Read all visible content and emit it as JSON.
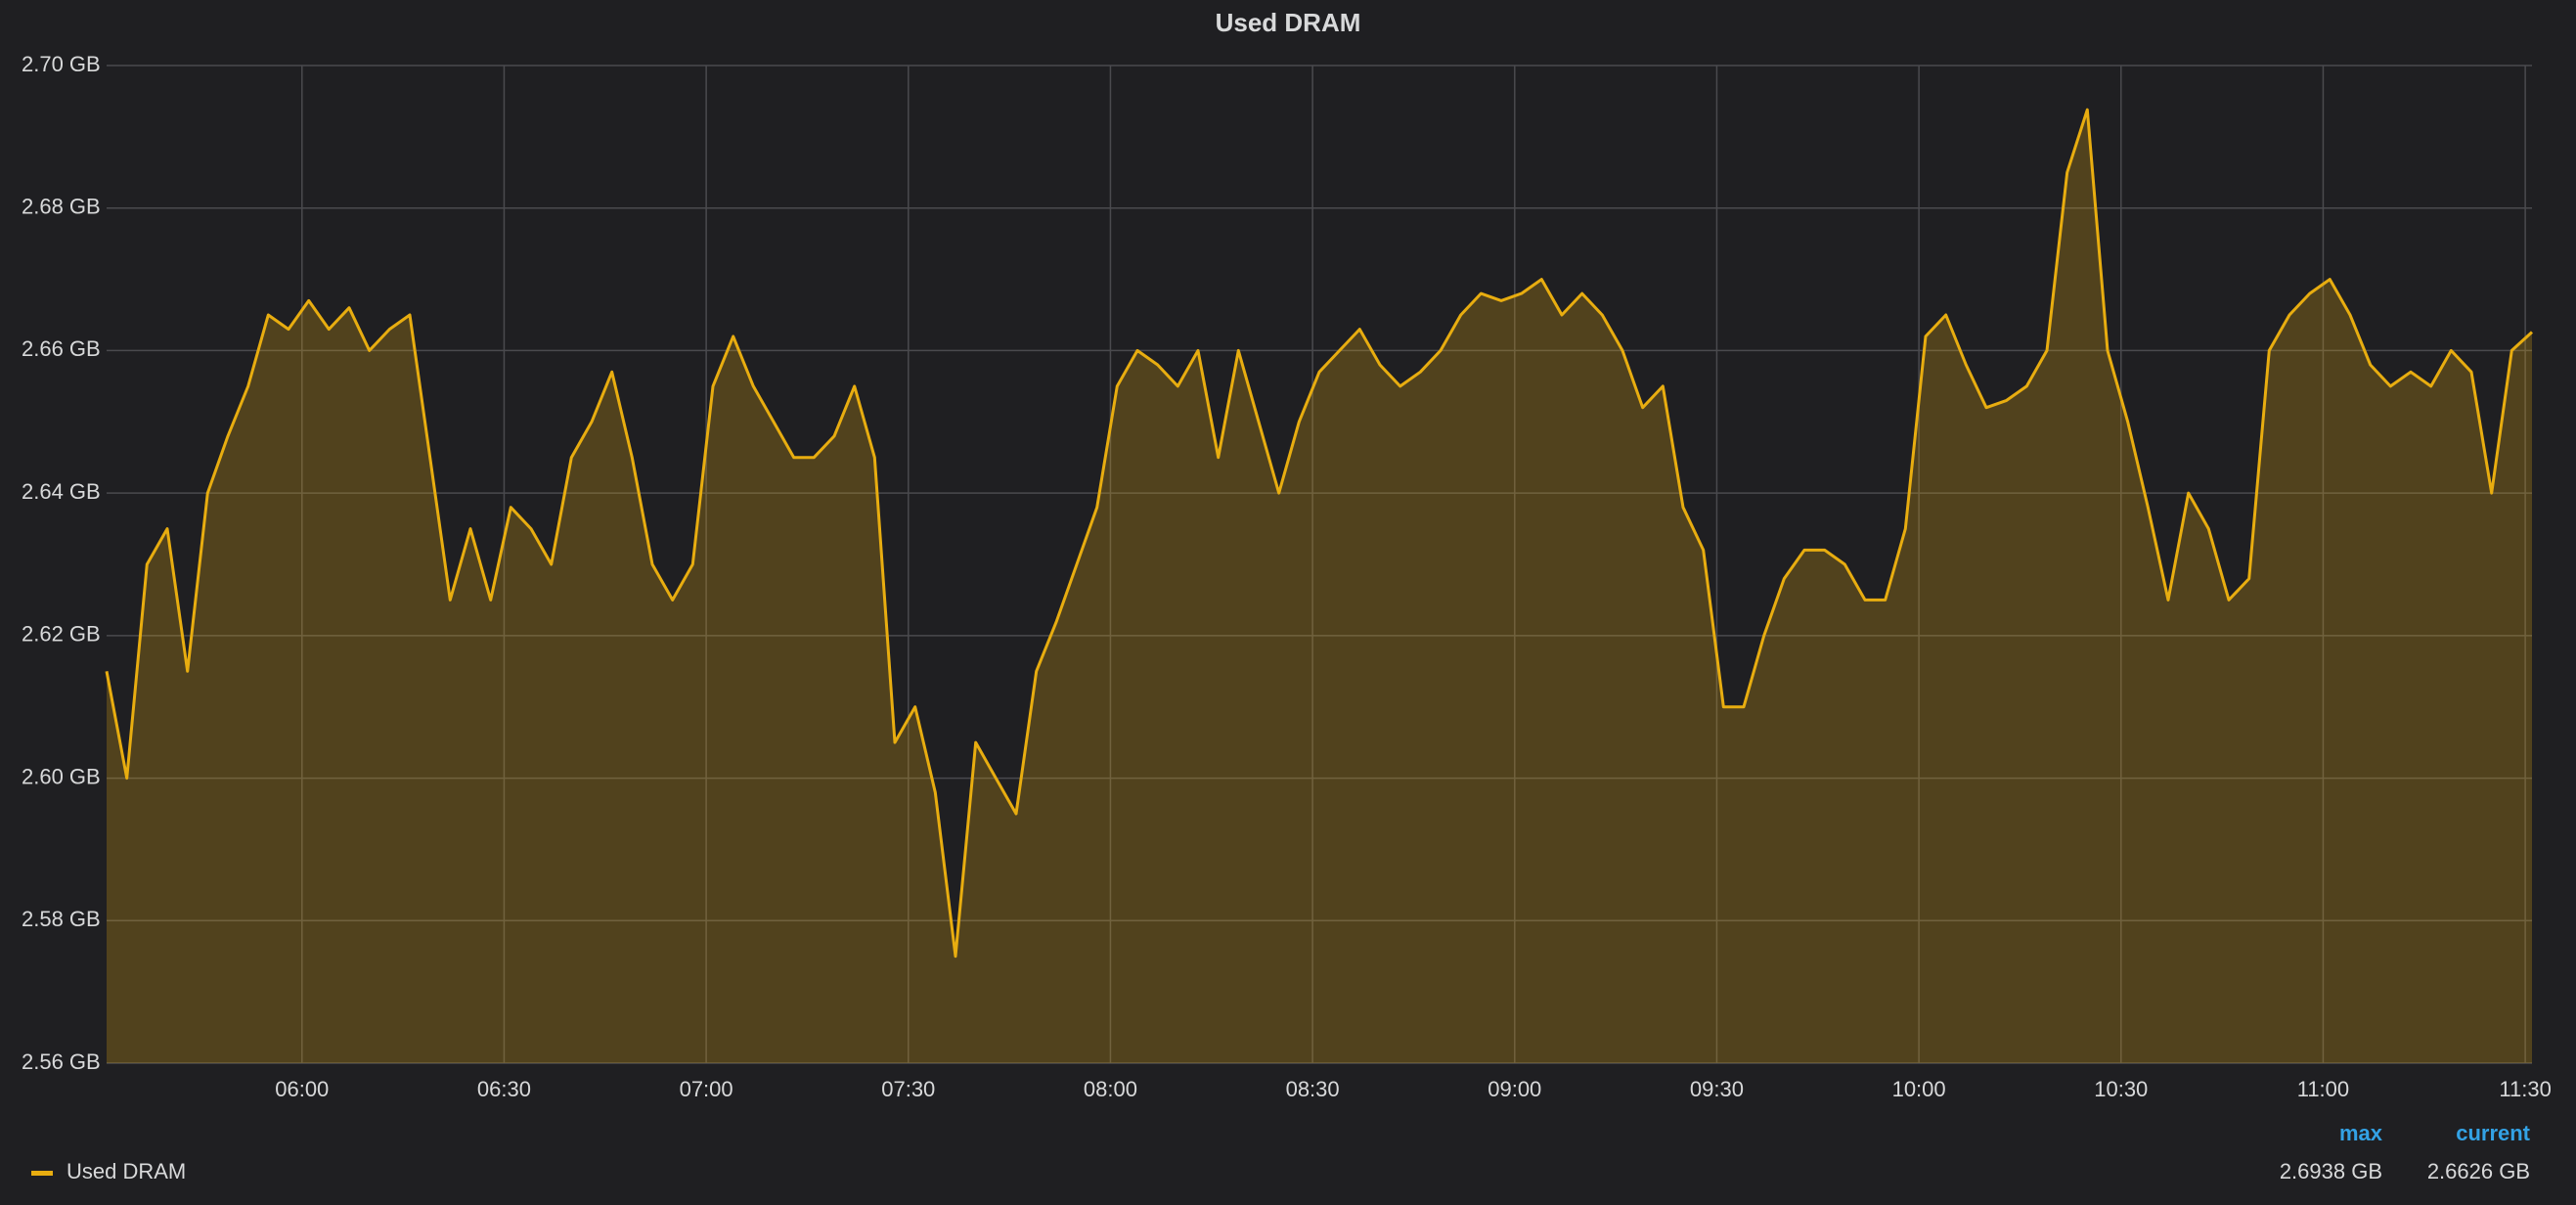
{
  "chart_data": {
    "type": "line",
    "title": "Used DRAM",
    "fill": true,
    "grid": true,
    "x": [
      "05:31",
      "05:34",
      "05:37",
      "05:40",
      "05:43",
      "05:46",
      "05:49",
      "05:52",
      "05:55",
      "05:58",
      "06:01",
      "06:04",
      "06:07",
      "06:10",
      "06:13",
      "06:16",
      "06:19",
      "06:22",
      "06:25",
      "06:28",
      "06:31",
      "06:34",
      "06:37",
      "06:40",
      "06:43",
      "06:46",
      "06:49",
      "06:52",
      "06:55",
      "06:58",
      "07:01",
      "07:04",
      "07:07",
      "07:10",
      "07:13",
      "07:16",
      "07:19",
      "07:22",
      "07:25",
      "07:28",
      "07:31",
      "07:34",
      "07:37",
      "07:40",
      "07:43",
      "07:46",
      "07:49",
      "07:52",
      "07:55",
      "07:58",
      "08:01",
      "08:04",
      "08:07",
      "08:10",
      "08:13",
      "08:16",
      "08:19",
      "08:22",
      "08:25",
      "08:28",
      "08:31",
      "08:34",
      "08:37",
      "08:40",
      "08:43",
      "08:46",
      "08:49",
      "08:52",
      "08:55",
      "08:58",
      "09:01",
      "09:04",
      "09:07",
      "09:10",
      "09:13",
      "09:16",
      "09:19",
      "09:22",
      "09:25",
      "09:28",
      "09:31",
      "09:34",
      "09:37",
      "09:40",
      "09:43",
      "09:46",
      "09:49",
      "09:52",
      "09:55",
      "09:58",
      "10:01",
      "10:04",
      "10:07",
      "10:10",
      "10:13",
      "10:16",
      "10:19",
      "10:22",
      "10:25",
      "10:28",
      "10:31",
      "10:34",
      "10:37",
      "10:40",
      "10:43",
      "10:46",
      "10:49",
      "10:52",
      "10:55",
      "10:58",
      "11:01",
      "11:04",
      "11:07",
      "11:10",
      "11:13",
      "11:16",
      "11:19",
      "11:22",
      "11:25",
      "11:28",
      "11:31"
    ],
    "series": [
      {
        "name": "Used DRAM",
        "color": "#e8ad10",
        "values": [
          2.615,
          2.6,
          2.63,
          2.635,
          2.615,
          2.64,
          2.648,
          2.655,
          2.665,
          2.663,
          2.667,
          2.663,
          2.666,
          2.66,
          2.663,
          2.665,
          2.645,
          2.625,
          2.635,
          2.625,
          2.638,
          2.635,
          2.63,
          2.645,
          2.65,
          2.657,
          2.645,
          2.63,
          2.625,
          2.63,
          2.655,
          2.662,
          2.655,
          2.65,
          2.645,
          2.645,
          2.648,
          2.655,
          2.645,
          2.605,
          2.61,
          2.598,
          2.575,
          2.605,
          2.6,
          2.595,
          2.615,
          2.622,
          2.63,
          2.638,
          2.655,
          2.66,
          2.658,
          2.655,
          2.66,
          2.645,
          2.66,
          2.65,
          2.64,
          2.65,
          2.657,
          2.66,
          2.663,
          2.658,
          2.655,
          2.657,
          2.66,
          2.665,
          2.668,
          2.667,
          2.668,
          2.67,
          2.665,
          2.668,
          2.665,
          2.66,
          2.652,
          2.655,
          2.638,
          2.632,
          2.61,
          2.61,
          2.62,
          2.628,
          2.632,
          2.632,
          2.63,
          2.625,
          2.625,
          2.635,
          2.662,
          2.665,
          2.658,
          2.652,
          2.653,
          2.655,
          2.66,
          2.685,
          2.6938,
          2.66,
          2.65,
          2.638,
          2.625,
          2.64,
          2.635,
          2.625,
          2.628,
          2.66,
          2.665,
          2.668,
          2.67,
          2.665,
          2.658,
          2.655,
          2.657,
          2.655,
          2.66,
          2.657,
          2.64,
          2.66,
          2.6626
        ]
      }
    ],
    "xlim": [
      "05:31",
      "11:31"
    ],
    "xticks": [
      "06:00",
      "06:30",
      "07:00",
      "07:30",
      "08:00",
      "08:30",
      "09:00",
      "09:30",
      "10:00",
      "10:30",
      "11:00",
      "11:30"
    ],
    "ylim": [
      2.56,
      2.7
    ],
    "yticks": [
      {
        "value": 2.56,
        "label": "2.56 GB"
      },
      {
        "value": 2.58,
        "label": "2.58 GB"
      },
      {
        "value": 2.6,
        "label": "2.60 GB"
      },
      {
        "value": 2.62,
        "label": "2.62 GB"
      },
      {
        "value": 2.64,
        "label": "2.64 GB"
      },
      {
        "value": 2.66,
        "label": "2.66 GB"
      },
      {
        "value": 2.68,
        "label": "2.68 GB"
      },
      {
        "value": 2.7,
        "label": "2.70 GB"
      }
    ],
    "legend_stats": [
      {
        "name": "max",
        "value": "2.6938 GB"
      },
      {
        "name": "current",
        "value": "2.6626 GB"
      }
    ]
  }
}
